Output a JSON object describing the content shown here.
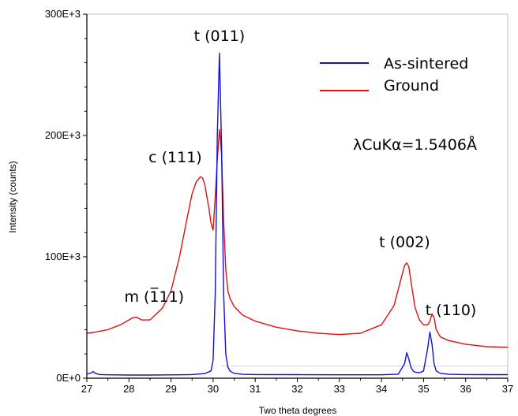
{
  "chart_data": {
    "type": "line",
    "xlabel": "Two theta degrees",
    "ylabel": "Intensity (counts)",
    "xlim": [
      27,
      37
    ],
    "ylim": [
      0,
      300000
    ],
    "x_ticks": [
      27,
      28,
      29,
      30,
      31,
      32,
      33,
      34,
      35,
      36,
      37
    ],
    "x_tick_labels": [
      "27",
      "28",
      "29",
      "30",
      "31",
      "32",
      "33",
      "34",
      "35",
      "36",
      "37"
    ],
    "y_ticks": [
      0,
      100000,
      200000,
      300000
    ],
    "y_tick_labels": [
      "0E+0",
      "100E+3",
      "200E+3",
      "300E+3"
    ],
    "grid": false,
    "legend_position": "top-right",
    "series": [
      {
        "name": "As-sintered",
        "color": "#1010e0",
        "x": [
          27.0,
          27.1,
          27.15,
          27.2,
          27.3,
          27.5,
          28.0,
          28.5,
          29.0,
          29.5,
          29.8,
          29.95,
          30.0,
          30.05,
          30.1,
          30.15,
          30.2,
          30.25,
          30.3,
          30.35,
          30.4,
          30.5,
          30.7,
          31.0,
          32.0,
          33.0,
          34.0,
          34.4,
          34.55,
          34.6,
          34.65,
          34.7,
          34.75,
          34.8,
          34.9,
          35.0,
          35.1,
          35.15,
          35.2,
          35.25,
          35.3,
          35.4,
          35.6,
          36.0,
          36.5,
          37.0
        ],
        "y": [
          3500,
          4200,
          5500,
          4000,
          3000,
          2800,
          2600,
          2600,
          2700,
          3000,
          3800,
          6000,
          15000,
          70000,
          200000,
          268000,
          190000,
          70000,
          20000,
          9000,
          6000,
          4000,
          3200,
          3000,
          2900,
          2800,
          2800,
          3300,
          12000,
          21000,
          16000,
          9000,
          6000,
          5000,
          4500,
          6000,
          25000,
          38000,
          28000,
          12000,
          6000,
          4000,
          3200,
          3000,
          2900,
          2900
        ]
      },
      {
        "name": "Ground",
        "color": "#e01010",
        "x": [
          27.0,
          27.2,
          27.5,
          27.8,
          28.0,
          28.1,
          28.2,
          28.3,
          28.5,
          28.8,
          29.0,
          29.2,
          29.4,
          29.5,
          29.6,
          29.7,
          29.75,
          29.8,
          29.9,
          29.95,
          30.0,
          30.05,
          30.1,
          30.15,
          30.2,
          30.25,
          30.3,
          30.35,
          30.4,
          30.5,
          30.7,
          31.0,
          31.5,
          32.0,
          32.5,
          33.0,
          33.5,
          34.0,
          34.3,
          34.45,
          34.55,
          34.6,
          34.65,
          34.7,
          34.8,
          34.9,
          35.0,
          35.1,
          35.15,
          35.2,
          35.25,
          35.3,
          35.4,
          35.6,
          36.0,
          36.5,
          37.0
        ],
        "y": [
          37000,
          38000,
          40000,
          44000,
          48000,
          50000,
          50000,
          48000,
          48000,
          58000,
          72000,
          100000,
          135000,
          152000,
          162000,
          166000,
          165000,
          160000,
          140000,
          128000,
          122000,
          150000,
          180000,
          205000,
          185000,
          130000,
          90000,
          72000,
          66000,
          59000,
          52000,
          47000,
          42000,
          39000,
          37000,
          36000,
          37000,
          44000,
          60000,
          80000,
          93000,
          95000,
          92000,
          80000,
          58000,
          48000,
          44000,
          44000,
          47000,
          53000,
          50000,
          40000,
          34000,
          31000,
          28000,
          26000,
          25500
        ]
      }
    ],
    "annotations": [
      {
        "text": "m (1̅11)",
        "x": 28.6,
        "y": 63000
      },
      {
        "text": "c (111)",
        "x": 29.1,
        "y": 178000
      },
      {
        "text": "t (011)",
        "x": 30.15,
        "y": 278000
      },
      {
        "text": "t (002)",
        "x": 34.55,
        "y": 108000
      },
      {
        "text": "t (110)",
        "x": 35.65,
        "y": 52000
      }
    ],
    "wavelength_note": "λCuKα=1.5406Å"
  }
}
